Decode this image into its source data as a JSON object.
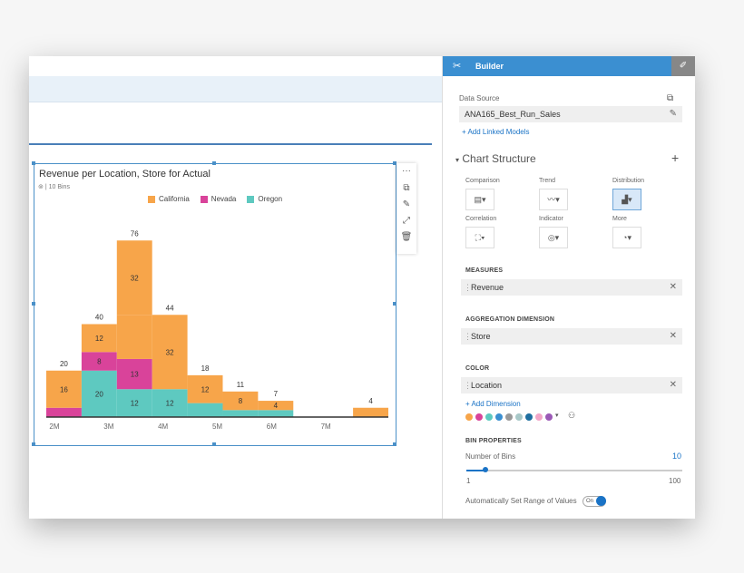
{
  "builder": {
    "title": "Builder",
    "data_source_label": "Data Source",
    "data_source_value": "ANA165_Best_Run_Sales",
    "add_linked_models": "+ Add Linked Models",
    "chart_structure": "Chart Structure",
    "add_icon": "+",
    "chart_types": [
      {
        "label": "Comparison"
      },
      {
        "label": "Trend"
      },
      {
        "label": "Distribution"
      },
      {
        "label": "Correlation"
      },
      {
        "label": "Indicator"
      },
      {
        "label": "More"
      }
    ],
    "measures_header": "MEASURES",
    "measure_value": "Revenue",
    "aggregation_header": "AGGREGATION DIMENSION",
    "aggregation_value": "Store",
    "color_header": "COLOR",
    "color_value": "Location",
    "add_dimension": "+ Add Dimension",
    "palette": [
      "#f7a54a",
      "#d9439a",
      "#5ec9c0",
      "#3b8fd1",
      "#999999",
      "#a8c8c8",
      "#1f6fa0",
      "#f2a6c8",
      "#9b59b6"
    ],
    "bin_properties_header": "BIN PROPERTIES",
    "number_of_bins_label": "Number of Bins",
    "number_of_bins_value": "10",
    "slider_min": "1",
    "slider_max": "100",
    "slider_value_fraction": 0.09,
    "auto_range_label": "Automatically Set Range of Values",
    "toggle_label": "On"
  },
  "chart": {
    "title": "Revenue per Location, Store for Actual",
    "subtitle": "| 10 Bins"
  },
  "chart_data": {
    "type": "bar",
    "stacked": true,
    "title": "Revenue per Location, Store for Actual",
    "legend": [
      "California",
      "Nevada",
      "Oregon"
    ],
    "colors": {
      "California": "#f7a54a",
      "Nevada": "#d9439a",
      "Oregon": "#5ec9c0"
    },
    "x_ticks": [
      "2M",
      "3M",
      "4M",
      "5M",
      "6M",
      "7M"
    ],
    "x_tick_values": [
      2,
      3,
      4,
      5,
      6,
      7
    ],
    "xlim": [
      1.85,
      8.15
    ],
    "bin_width": 0.65,
    "bins": [
      {
        "x0": 1.85,
        "total": "20",
        "segments": [
          {
            "series": "Nevada",
            "value": 4
          },
          {
            "series": "California",
            "value": 16,
            "label": "16"
          }
        ]
      },
      {
        "x0": 2.5,
        "total": "40",
        "segments": [
          {
            "series": "Oregon",
            "value": 20,
            "label": "20"
          },
          {
            "series": "Nevada",
            "value": 8,
            "label": "8"
          },
          {
            "series": "California",
            "value": 12,
            "label": "12"
          }
        ]
      },
      {
        "x0": 3.15,
        "total": "76",
        "segments": [
          {
            "series": "Oregon",
            "value": 12,
            "label": "12"
          },
          {
            "series": "Nevada",
            "value": 13,
            "label": "13"
          },
          {
            "series": "California",
            "value": 19
          },
          {
            "series": "California",
            "value": 32,
            "label": "32"
          }
        ]
      },
      {
        "x0": 3.8,
        "total": "44",
        "segments": [
          {
            "series": "Oregon",
            "value": 12,
            "label": "12"
          },
          {
            "series": "California",
            "value": 32,
            "label": "32"
          }
        ]
      },
      {
        "x0": 4.45,
        "total": "18",
        "segments": [
          {
            "series": "Oregon",
            "value": 6
          },
          {
            "series": "California",
            "value": 12,
            "label": "12"
          }
        ]
      },
      {
        "x0": 5.1,
        "total": "11",
        "segments": [
          {
            "series": "Oregon",
            "value": 3
          },
          {
            "series": "California",
            "value": 8,
            "label": "8"
          }
        ]
      },
      {
        "x0": 5.75,
        "total": "7",
        "segments": [
          {
            "series": "Oregon",
            "value": 3
          },
          {
            "series": "California",
            "value": 4,
            "label": "4"
          }
        ]
      },
      {
        "x0": 6.4,
        "total": "",
        "segments": []
      },
      {
        "x0": 7.05,
        "total": "",
        "segments": []
      },
      {
        "x0": 7.5,
        "total": "4",
        "segments": [
          {
            "series": "California",
            "value": 4
          }
        ]
      }
    ],
    "ylim": [
      0,
      80
    ]
  }
}
